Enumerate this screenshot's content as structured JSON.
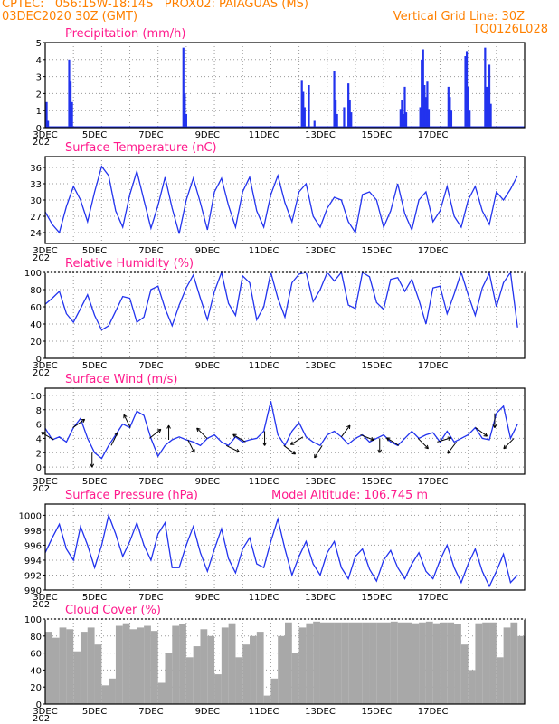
{
  "header": {
    "line1_left": "CPTEC:   056:15W-18:14S   PROX02: PAIAGUAS (MS)",
    "line2_left": "03DEC2020 30Z (GMT)",
    "line2_right": "Vertical Grid Line: 30Z",
    "line3_right": "TQ0126L028"
  },
  "x_tick_labels": [
    "3DEC",
    "5DEC",
    "7DEC",
    "9DEC",
    "11DEC",
    "13DEC",
    "15DEC",
    "17DEC"
  ],
  "year_fragment": "202",
  "colors": {
    "header": "#ff8000",
    "panel_title": "#ff1a8c",
    "series": "#2233ee",
    "cloud": "#a8a8a8",
    "grid": "#9a9a9a",
    "arrow": "#000000"
  },
  "chart_data": [
    {
      "type": "bar",
      "title": "Precipitation (mm/h)",
      "ylim": [
        0,
        5
      ],
      "yticks": [
        0,
        1,
        2,
        3,
        4,
        5
      ],
      "x_unit": "days after 03DEC 06Z",
      "x": [
        0.05,
        0.1,
        0.85,
        0.9,
        0.95,
        4.9,
        4.95,
        5.0,
        9.1,
        9.15,
        9.2,
        9.35,
        9.55,
        10.25,
        10.3,
        10.35,
        10.6,
        10.75,
        10.8,
        10.85,
        12.6,
        12.65,
        12.7,
        12.75,
        12.8,
        13.3,
        13.35,
        13.4,
        13.45,
        13.5,
        13.55,
        13.6,
        14.3,
        14.35,
        14.4,
        14.9,
        14.95,
        15.0,
        15.05,
        15.6,
        15.65,
        15.7,
        15.75,
        15.8
      ],
      "values": [
        1.5,
        0.4,
        4.0,
        2.7,
        1.5,
        4.7,
        2.0,
        0.8,
        2.8,
        2.1,
        1.2,
        2.5,
        0.4,
        3.3,
        1.6,
        0.8,
        1.2,
        2.6,
        1.6,
        0.9,
        1.1,
        1.6,
        0.8,
        2.4,
        0.9,
        1.2,
        4.0,
        4.6,
        2.5,
        1.8,
        2.7,
        1.1,
        2.4,
        1.8,
        1.0,
        4.2,
        4.5,
        2.4,
        1.0,
        4.7,
        2.4,
        1.3,
        3.7,
        1.4
      ]
    },
    {
      "type": "line",
      "title": "Surface Temperature (nC)",
      "ylim": [
        22,
        38
      ],
      "yticks": [
        24,
        27,
        30,
        33,
        36
      ],
      "x_unit": "days after 03DEC 06Z",
      "x": [
        0,
        0.25,
        0.5,
        0.75,
        1,
        1.25,
        1.5,
        1.75,
        2,
        2.25,
        2.5,
        2.75,
        3,
        3.25,
        3.5,
        3.75,
        4,
        4.25,
        4.5,
        4.75,
        5,
        5.25,
        5.5,
        5.75,
        6,
        6.25,
        6.5,
        6.75,
        7,
        7.25,
        7.5,
        7.75,
        8,
        8.25,
        8.5,
        8.75,
        9,
        9.25,
        9.5,
        9.75,
        10,
        10.25,
        10.5,
        10.75,
        11,
        11.25,
        11.5,
        11.75,
        12,
        12.25,
        12.5,
        12.75,
        13,
        13.25,
        13.5,
        13.75,
        14,
        14.25,
        14.5,
        14.75,
        15,
        15.25,
        15.5,
        15.75,
        16,
        16.25,
        16.5,
        16.75
      ],
      "values": [
        27.8,
        25.5,
        24.0,
        28.8,
        32.5,
        30.0,
        26.0,
        31.5,
        36.2,
        34.5,
        28.0,
        25.0,
        31.0,
        35.3,
        30.0,
        24.8,
        29.0,
        34.2,
        28.5,
        23.8,
        30.0,
        34.0,
        29.5,
        24.5,
        31.5,
        34.0,
        29.0,
        25.0,
        31.5,
        34.2,
        28.0,
        25.0,
        31.0,
        34.5,
        29.5,
        26.0,
        31.5,
        33.0,
        27.0,
        25.0,
        28.5,
        30.5,
        30.0,
        26.0,
        24.0,
        31.0,
        31.5,
        30.0,
        25.0,
        28.0,
        33.0,
        27.5,
        24.5,
        30.0,
        31.5,
        26.0,
        28.0,
        32.5,
        27.0,
        25.0,
        30.0,
        32.5,
        28.0,
        25.5,
        31.5,
        30.0,
        32.0,
        34.5
      ]
    },
    {
      "type": "line",
      "title": "Relative Humidity (%)",
      "ylim": [
        0,
        100
      ],
      "yticks": [
        0,
        20,
        40,
        60,
        80,
        100
      ],
      "x_unit": "days after 03DEC 06Z",
      "x": [
        0,
        0.25,
        0.5,
        0.75,
        1,
        1.25,
        1.5,
        1.75,
        2,
        2.25,
        2.5,
        2.75,
        3,
        3.25,
        3.5,
        3.75,
        4,
        4.25,
        4.5,
        4.75,
        5,
        5.25,
        5.5,
        5.75,
        6,
        6.25,
        6.5,
        6.75,
        7,
        7.25,
        7.5,
        7.75,
        8,
        8.25,
        8.5,
        8.75,
        9,
        9.25,
        9.5,
        9.75,
        10,
        10.25,
        10.5,
        10.75,
        11,
        11.25,
        11.5,
        11.75,
        12,
        12.25,
        12.5,
        12.75,
        13,
        13.25,
        13.5,
        13.75,
        14,
        14.25,
        14.5,
        14.75,
        15,
        15.25,
        15.5,
        15.75,
        16,
        16.25,
        16.5,
        16.75
      ],
      "values": [
        63,
        70,
        78,
        52,
        42,
        58,
        74,
        50,
        33,
        38,
        55,
        72,
        70,
        42,
        48,
        80,
        84,
        58,
        38,
        62,
        82,
        97,
        70,
        45,
        78,
        100,
        64,
        50,
        96,
        88,
        45,
        60,
        100,
        70,
        48,
        88,
        98,
        100,
        66,
        80,
        100,
        90,
        100,
        62,
        58,
        100,
        95,
        65,
        57,
        92,
        94,
        78,
        92,
        68,
        40,
        82,
        84,
        52,
        75,
        100,
        74,
        50,
        82,
        99,
        60,
        88,
        100,
        36
      ]
    },
    {
      "type": "line",
      "title": "Surface Wind (m/s)",
      "ylim": [
        -1,
        11
      ],
      "yticks": [
        0,
        2,
        4,
        6,
        8,
        10
      ],
      "x_unit": "days after 03DEC 06Z",
      "x": [
        0,
        0.25,
        0.5,
        0.75,
        1,
        1.25,
        1.5,
        1.75,
        2,
        2.25,
        2.5,
        2.75,
        3,
        3.25,
        3.5,
        3.75,
        4,
        4.25,
        4.5,
        4.75,
        5,
        5.25,
        5.5,
        5.75,
        6,
        6.25,
        6.5,
        6.75,
        7,
        7.25,
        7.5,
        7.75,
        8,
        8.25,
        8.5,
        8.75,
        9,
        9.25,
        9.5,
        9.75,
        10,
        10.25,
        10.5,
        10.75,
        11,
        11.25,
        11.5,
        11.75,
        12,
        12.25,
        12.5,
        12.75,
        13,
        13.25,
        13.5,
        13.75,
        14,
        14.25,
        14.5,
        14.75,
        15,
        15.25,
        15.5,
        15.75,
        16,
        16.25,
        16.5,
        16.75
      ],
      "values": [
        5.4,
        3.8,
        4.2,
        3.5,
        5.5,
        6.8,
        4.0,
        2.0,
        1.2,
        3.0,
        4.5,
        6.0,
        5.5,
        7.8,
        7.2,
        4.0,
        1.5,
        3.0,
        3.8,
        4.2,
        3.8,
        3.5,
        3.0,
        4.0,
        4.5,
        3.5,
        3.0,
        4.2,
        3.5,
        3.8,
        4.0,
        5.0,
        9.2,
        4.5,
        3.0,
        5.0,
        6.2,
        4.2,
        3.5,
        3.0,
        4.5,
        5.0,
        4.2,
        3.2,
        4.0,
        4.5,
        3.5,
        4.0,
        4.5,
        3.5,
        3.0,
        4.0,
        5.0,
        4.0,
        4.5,
        4.8,
        3.5,
        5.0,
        3.5,
        4.0,
        4.5,
        5.5,
        4.0,
        3.8,
        7.5,
        8.5,
        4.0,
        6.0
      ],
      "vector_arrows": "wind direction vectors drawn along the series"
    },
    {
      "type": "line",
      "title": "Surface Pressure (hPa)",
      "annotation": "Model Altitude: 106.745  m",
      "ylim": [
        990,
        1001.5
      ],
      "yticks": [
        990,
        992,
        994,
        996,
        998,
        1000
      ],
      "x_unit": "days after 03DEC 06Z",
      "x": [
        0,
        0.25,
        0.5,
        0.75,
        1,
        1.25,
        1.5,
        1.75,
        2,
        2.25,
        2.5,
        2.75,
        3,
        3.25,
        3.5,
        3.75,
        4,
        4.25,
        4.5,
        4.75,
        5,
        5.25,
        5.5,
        5.75,
        6,
        6.25,
        6.5,
        6.75,
        7,
        7.25,
        7.5,
        7.75,
        8,
        8.25,
        8.5,
        8.75,
        9,
        9.25,
        9.5,
        9.75,
        10,
        10.25,
        10.5,
        10.75,
        11,
        11.25,
        11.5,
        11.75,
        12,
        12.25,
        12.5,
        12.75,
        13,
        13.25,
        13.5,
        13.75,
        14,
        14.25,
        14.5,
        14.75,
        15,
        15.25,
        15.5,
        15.75,
        16,
        16.25,
        16.5,
        16.75
      ],
      "values": [
        995.0,
        997.0,
        998.8,
        995.5,
        994.0,
        998.5,
        996.0,
        993.0,
        996.0,
        1000.0,
        997.5,
        994.5,
        996.5,
        999.0,
        996.0,
        994.0,
        997.5,
        999.0,
        993.0,
        993.0,
        996.0,
        998.5,
        995.0,
        992.5,
        995.5,
        998.2,
        994.2,
        992.3,
        995.5,
        997.0,
        993.5,
        993.0,
        996.5,
        999.5,
        995.5,
        992.0,
        994.5,
        996.5,
        993.5,
        992.0,
        995.0,
        996.5,
        993.0,
        991.5,
        994.5,
        995.5,
        992.8,
        991.2,
        994.0,
        995.3,
        993.0,
        991.5,
        993.5,
        995.0,
        992.5,
        991.5,
        994.0,
        996.0,
        993.0,
        991.0,
        993.5,
        995.5,
        992.5,
        990.5,
        992.5,
        994.8,
        991.0,
        992.0
      ]
    },
    {
      "type": "bar",
      "title": "Cloud Cover (%)",
      "ylim": [
        0,
        100
      ],
      "yticks": [
        0,
        20,
        40,
        60,
        80,
        100
      ],
      "x_unit": "days after 03DEC 06Z",
      "x": [
        0,
        0.25,
        0.5,
        0.75,
        1,
        1.25,
        1.5,
        1.75,
        2,
        2.25,
        2.5,
        2.75,
        3,
        3.25,
        3.5,
        3.75,
        4,
        4.25,
        4.5,
        4.75,
        5,
        5.25,
        5.5,
        5.75,
        6,
        6.25,
        6.5,
        6.75,
        7,
        7.25,
        7.5,
        7.75,
        8,
        8.25,
        8.5,
        8.75,
        9,
        9.25,
        9.5,
        9.75,
        10,
        10.25,
        10.5,
        10.75,
        11,
        11.25,
        11.5,
        11.75,
        12,
        12.25,
        12.5,
        12.75,
        13,
        13.25,
        13.5,
        13.75,
        14,
        14.25,
        14.5,
        14.75,
        15,
        15.25,
        15.5,
        15.75,
        16,
        16.25,
        16.5,
        16.75
      ],
      "values": [
        85,
        78,
        90,
        88,
        62,
        85,
        90,
        70,
        22,
        30,
        92,
        95,
        88,
        90,
        92,
        86,
        25,
        60,
        92,
        94,
        55,
        68,
        88,
        80,
        35,
        90,
        95,
        55,
        70,
        80,
        85,
        10,
        30,
        80,
        96,
        60,
        90,
        95,
        97,
        96,
        96,
        96,
        96,
        96,
        96,
        96,
        96,
        96,
        96,
        97,
        96,
        96,
        95,
        96,
        97,
        95,
        96,
        96,
        94,
        70,
        40,
        95,
        96,
        96,
        55,
        90,
        96,
        80
      ]
    }
  ]
}
